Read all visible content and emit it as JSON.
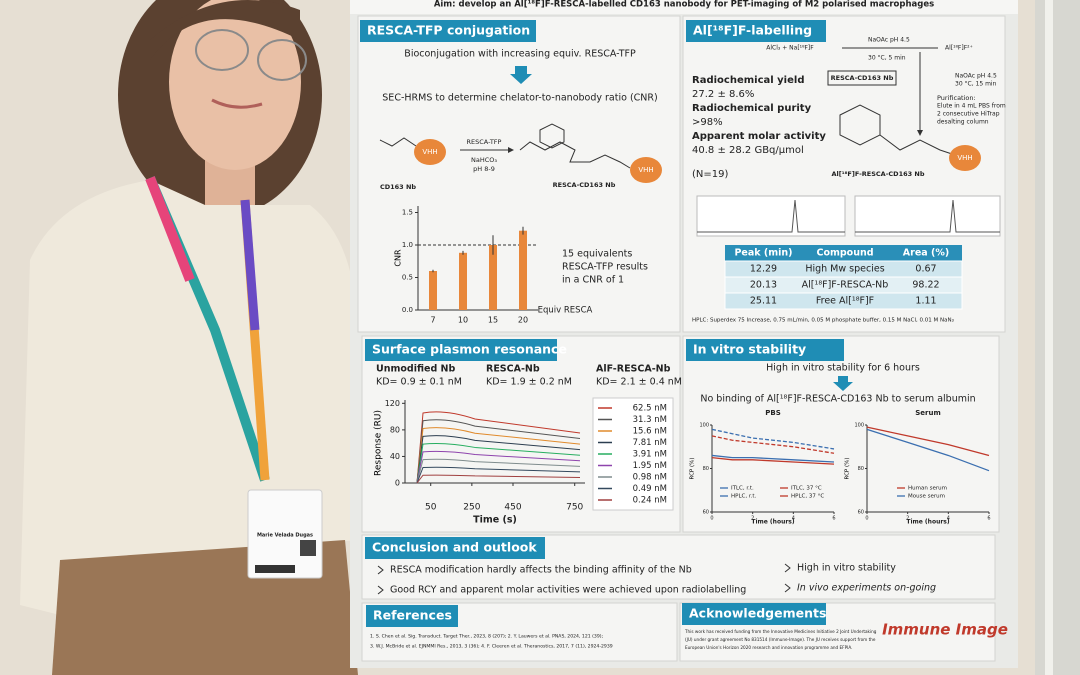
{
  "banner": "Aim: develop an Al[¹⁸F]F-RESCA-labelled CD163 nanobody for PET-imaging of M2 polarised macrophages",
  "badge": {
    "name": "Marie Velada Dugas"
  },
  "conjugation": {
    "title": "RESCA-TFP conjugation",
    "step1": "Bioconjugation with increasing equiv. RESCA-TFP",
    "step2": "SEC-HRMS to determine chelator-to-nanobody ratio (CNR)",
    "reagent": "RESCA-TFP",
    "base": "NaHCO₃",
    "ph": "pH 8-9",
    "reactant": "CD163 Nb",
    "product": "RESCA-CD163 Nb",
    "nb": "VHH",
    "chart": {
      "type": "bar",
      "ylabel": "CNR",
      "xlabel": "Equiv RESCA",
      "categories": [
        "7",
        "10",
        "15",
        "20"
      ],
      "values": [
        0.6,
        0.88,
        1.0,
        1.22
      ],
      "errors": [
        0.02,
        0.03,
        0.15,
        0.06
      ],
      "ref_line": 1,
      "ylim": [
        0,
        1.6
      ],
      "yticks": [
        {
          "value": 0,
          "label": "0.0"
        },
        {
          "value": 0.5,
          "label": "0.5"
        },
        {
          "value": 1,
          "label": "1.0"
        },
        {
          "value": 1.5,
          "label": "1.5"
        }
      ],
      "color": "#e8873a"
    },
    "note": [
      "15     equivalents",
      "RESCA-TFP results",
      "in a CNR of 1"
    ]
  },
  "labelling": {
    "title": "Al[¹⁸F]F-labelling",
    "rcy_label": "Radiochemical yield",
    "rcy": "27.2 ± 8.6%",
    "rcp_label": "Radiochemical purity",
    "rcp": ">98%",
    "am_label": "Apparent molar activity",
    "am": "40.8 ± 28.2 GBq/µmol",
    "n": "(N=19)",
    "scheme": [
      "AlCl₃ + Na[¹⁸F]F",
      "NaOAc pH 4.5",
      "30 °C, 5 min",
      "Al[¹⁸F]F²⁺",
      "RESCA-CD163 Nb",
      "NaOAc pH 4.5",
      "30 °C, 15 min",
      "Purification:",
      "Elute in 4 mL PBS from",
      "2 consecutive HiTrap",
      "desalting column"
    ],
    "product": "Al[¹⁸F]F-RESCA-CD163 Nb",
    "nb": "VHH",
    "table": {
      "header": [
        "Peak (min)",
        "Compound",
        "Area (%)"
      ],
      "rows": [
        [
          "12.29",
          "High Mw species",
          "0.67"
        ],
        [
          "20.13",
          "Al[¹⁸F]F-RESCA-Nb",
          "98.22"
        ],
        [
          "25.11",
          "Free Al[¹⁸F]F",
          "1.11"
        ]
      ]
    },
    "footnote": "HPLC: Superdex 75 Increase, 0.75 mL/min, 0.05 M phosphate buffer, 0.15 M NaCl, 0.01 M NaN₃"
  },
  "spr": {
    "title": "Surface plasmon resonance",
    "groups": [
      {
        "name": "Unmodified Nb",
        "kd": "KD= 0.9 ± 0.1 nM"
      },
      {
        "name": "RESCA-Nb",
        "kd": "KD= 1.9 ± 0.2 nM"
      },
      {
        "name": "AlF-RESCA-Nb",
        "kd": "KD= 2.1 ± 0.4 nM"
      }
    ],
    "chart": {
      "type": "line",
      "ylabel": "Response (RU)",
      "xlabel": "Time (s)",
      "xlim": [
        -75,
        800
      ],
      "ylim": [
        0,
        125
      ],
      "xticks": [
        50,
        250,
        450,
        750
      ],
      "yticks": [
        0,
        40,
        80,
        120
      ],
      "series": [
        {
          "name": "62.5 nM",
          "color": "#c0392b"
        },
        {
          "name": "31.3 nM",
          "color": "#555555"
        },
        {
          "name": "15.6 nM",
          "color": "#e08a2c"
        },
        {
          "name": "7.81 nM",
          "color": "#2c3e50"
        },
        {
          "name": "3.91 nM",
          "color": "#27ae60"
        },
        {
          "name": "1.95 nM",
          "color": "#8e44ad"
        },
        {
          "name": "0.98 nM",
          "color": "#7f8c8d"
        },
        {
          "name": "0.49 nM",
          "color": "#34495e"
        },
        {
          "name": "0.24 nM",
          "color": "#a04040"
        }
      ]
    }
  },
  "stability": {
    "title": "In vitro stability",
    "line1": "High in vitro stability for 6 hours",
    "line2": "No binding of Al[¹⁸F]F-RESCA-CD163 Nb to serum albumin",
    "charts": [
      {
        "type": "line",
        "title": "PBS",
        "ylabel": "RCP (%)",
        "xlabel": "Time (hours)",
        "x": [
          0,
          1,
          2,
          4,
          6
        ],
        "xlim": [
          0,
          6
        ],
        "ylim": [
          60,
          100
        ],
        "xticks": [
          0,
          2,
          4,
          6
        ],
        "yticks": [
          60,
          80,
          100
        ],
        "series": [
          {
            "name": "ITLC, r.t.",
            "color": "#3b6fb0",
            "values": [
              98,
              96,
              94,
              92,
              89
            ]
          },
          {
            "name": "ITLC, 37 °C",
            "color": "#c0392b",
            "values": [
              95,
              93,
              92,
              90,
              87
            ]
          },
          {
            "name": "HPLC, r.t.",
            "color": "#3b6fb0",
            "values": [
              86,
              85,
              85,
              84,
              83
            ]
          },
          {
            "name": "HPLC, 37 °C",
            "color": "#c0392b",
            "values": [
              85,
              84,
              84,
              83,
              82
            ]
          }
        ]
      },
      {
        "type": "line",
        "title": "Serum",
        "ylabel": "RCP (%)",
        "xlabel": "Time (hours)",
        "x": [
          0,
          1,
          2,
          4,
          6
        ],
        "xlim": [
          0,
          6
        ],
        "ylim": [
          60,
          100
        ],
        "xticks": [
          0,
          2,
          4,
          6
        ],
        "yticks": [
          60,
          80,
          100
        ],
        "series": [
          {
            "name": "Human serum",
            "color": "#c0392b",
            "values": [
              99,
              97,
              95,
              91,
              86
            ]
          },
          {
            "name": "Mouse serum",
            "color": "#3b6fb0",
            "values": [
              98,
              95,
              92,
              86,
              79
            ]
          }
        ]
      }
    ]
  },
  "conclusion": {
    "title": "Conclusion and outlook",
    "bullets": [
      "RESCA modification hardly affects the binding affinity of the Nb",
      "Good RCY and apparent molar activities were achieved upon radiolabelling",
      "High in vitro stability",
      "In vivo experiments on-going"
    ]
  },
  "references": {
    "title": "References",
    "lines": [
      "1. S. Chen et al. Sig. Transduct. Target Ther., 2023, 8 (207); 2. Y. Lauwers et al. PNAS, 2024, 121 (39);",
      "3. W.J. McBride et al. EJNMMI Res., 2013, 3 (36); 4. F. Cleeren et al. Theranostics, 2017, 7 (11), 2924-2939"
    ]
  },
  "acknowledgements": {
    "title": "Acknowledgements",
    "lines": [
      "This work has received funding from the Innovative Medicines Initiative 2 Joint Undertaking",
      "(JU) under grant agreement No 831514 (Immune-Image). The JU receives support from the",
      "European Union's Horizon 2020 research and innovation programme and EFPIA."
    ],
    "logo": "Immune Image"
  }
}
